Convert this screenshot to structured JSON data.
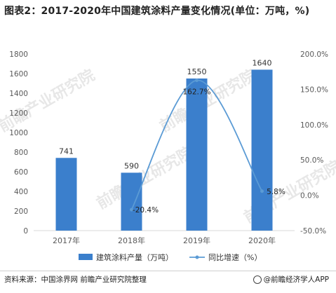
{
  "title": "图表2：2017-2020年中国建筑涂料产量变化情况(单位：万吨，%)",
  "source": "资料来源：中国涂界网 前瞻产业研究院整理",
  "brand": "@前瞻经济学人APP",
  "watermark": "前瞻产业研究院",
  "colors": {
    "bar": "#3b7fcc",
    "line": "#5b9bd5",
    "grid": "#d9d9d9",
    "axis_text": "#595959"
  },
  "chart_data": {
    "type": "bar",
    "categories": [
      "2017年",
      "2018年",
      "2019年",
      "2020年"
    ],
    "series": [
      {
        "name": "建筑涂料产量（万吨）",
        "type": "bar",
        "axis": "left",
        "values": [
          741,
          590,
          1550,
          1640
        ],
        "labels": [
          "741",
          "590",
          "1550",
          "1640"
        ]
      },
      {
        "name": "同比增速（%）",
        "type": "line",
        "axis": "right",
        "values": [
          null,
          -20.4,
          162.7,
          5.8
        ],
        "labels": [
          "",
          "-20.4%",
          "162.7%",
          "5.8%"
        ]
      }
    ],
    "y_left": {
      "min": 0,
      "max": 1800,
      "ticks": [
        "0",
        "200",
        "400",
        "600",
        "800",
        "1000",
        "1200",
        "1400",
        "1600",
        "1800"
      ]
    },
    "y_right": {
      "min": -50,
      "max": 200,
      "ticks": [
        "-50.0%",
        "0.0%",
        "50.0%",
        "100.0%",
        "150.0%",
        "200.0%"
      ]
    },
    "grid": false,
    "legend": "bottom"
  }
}
